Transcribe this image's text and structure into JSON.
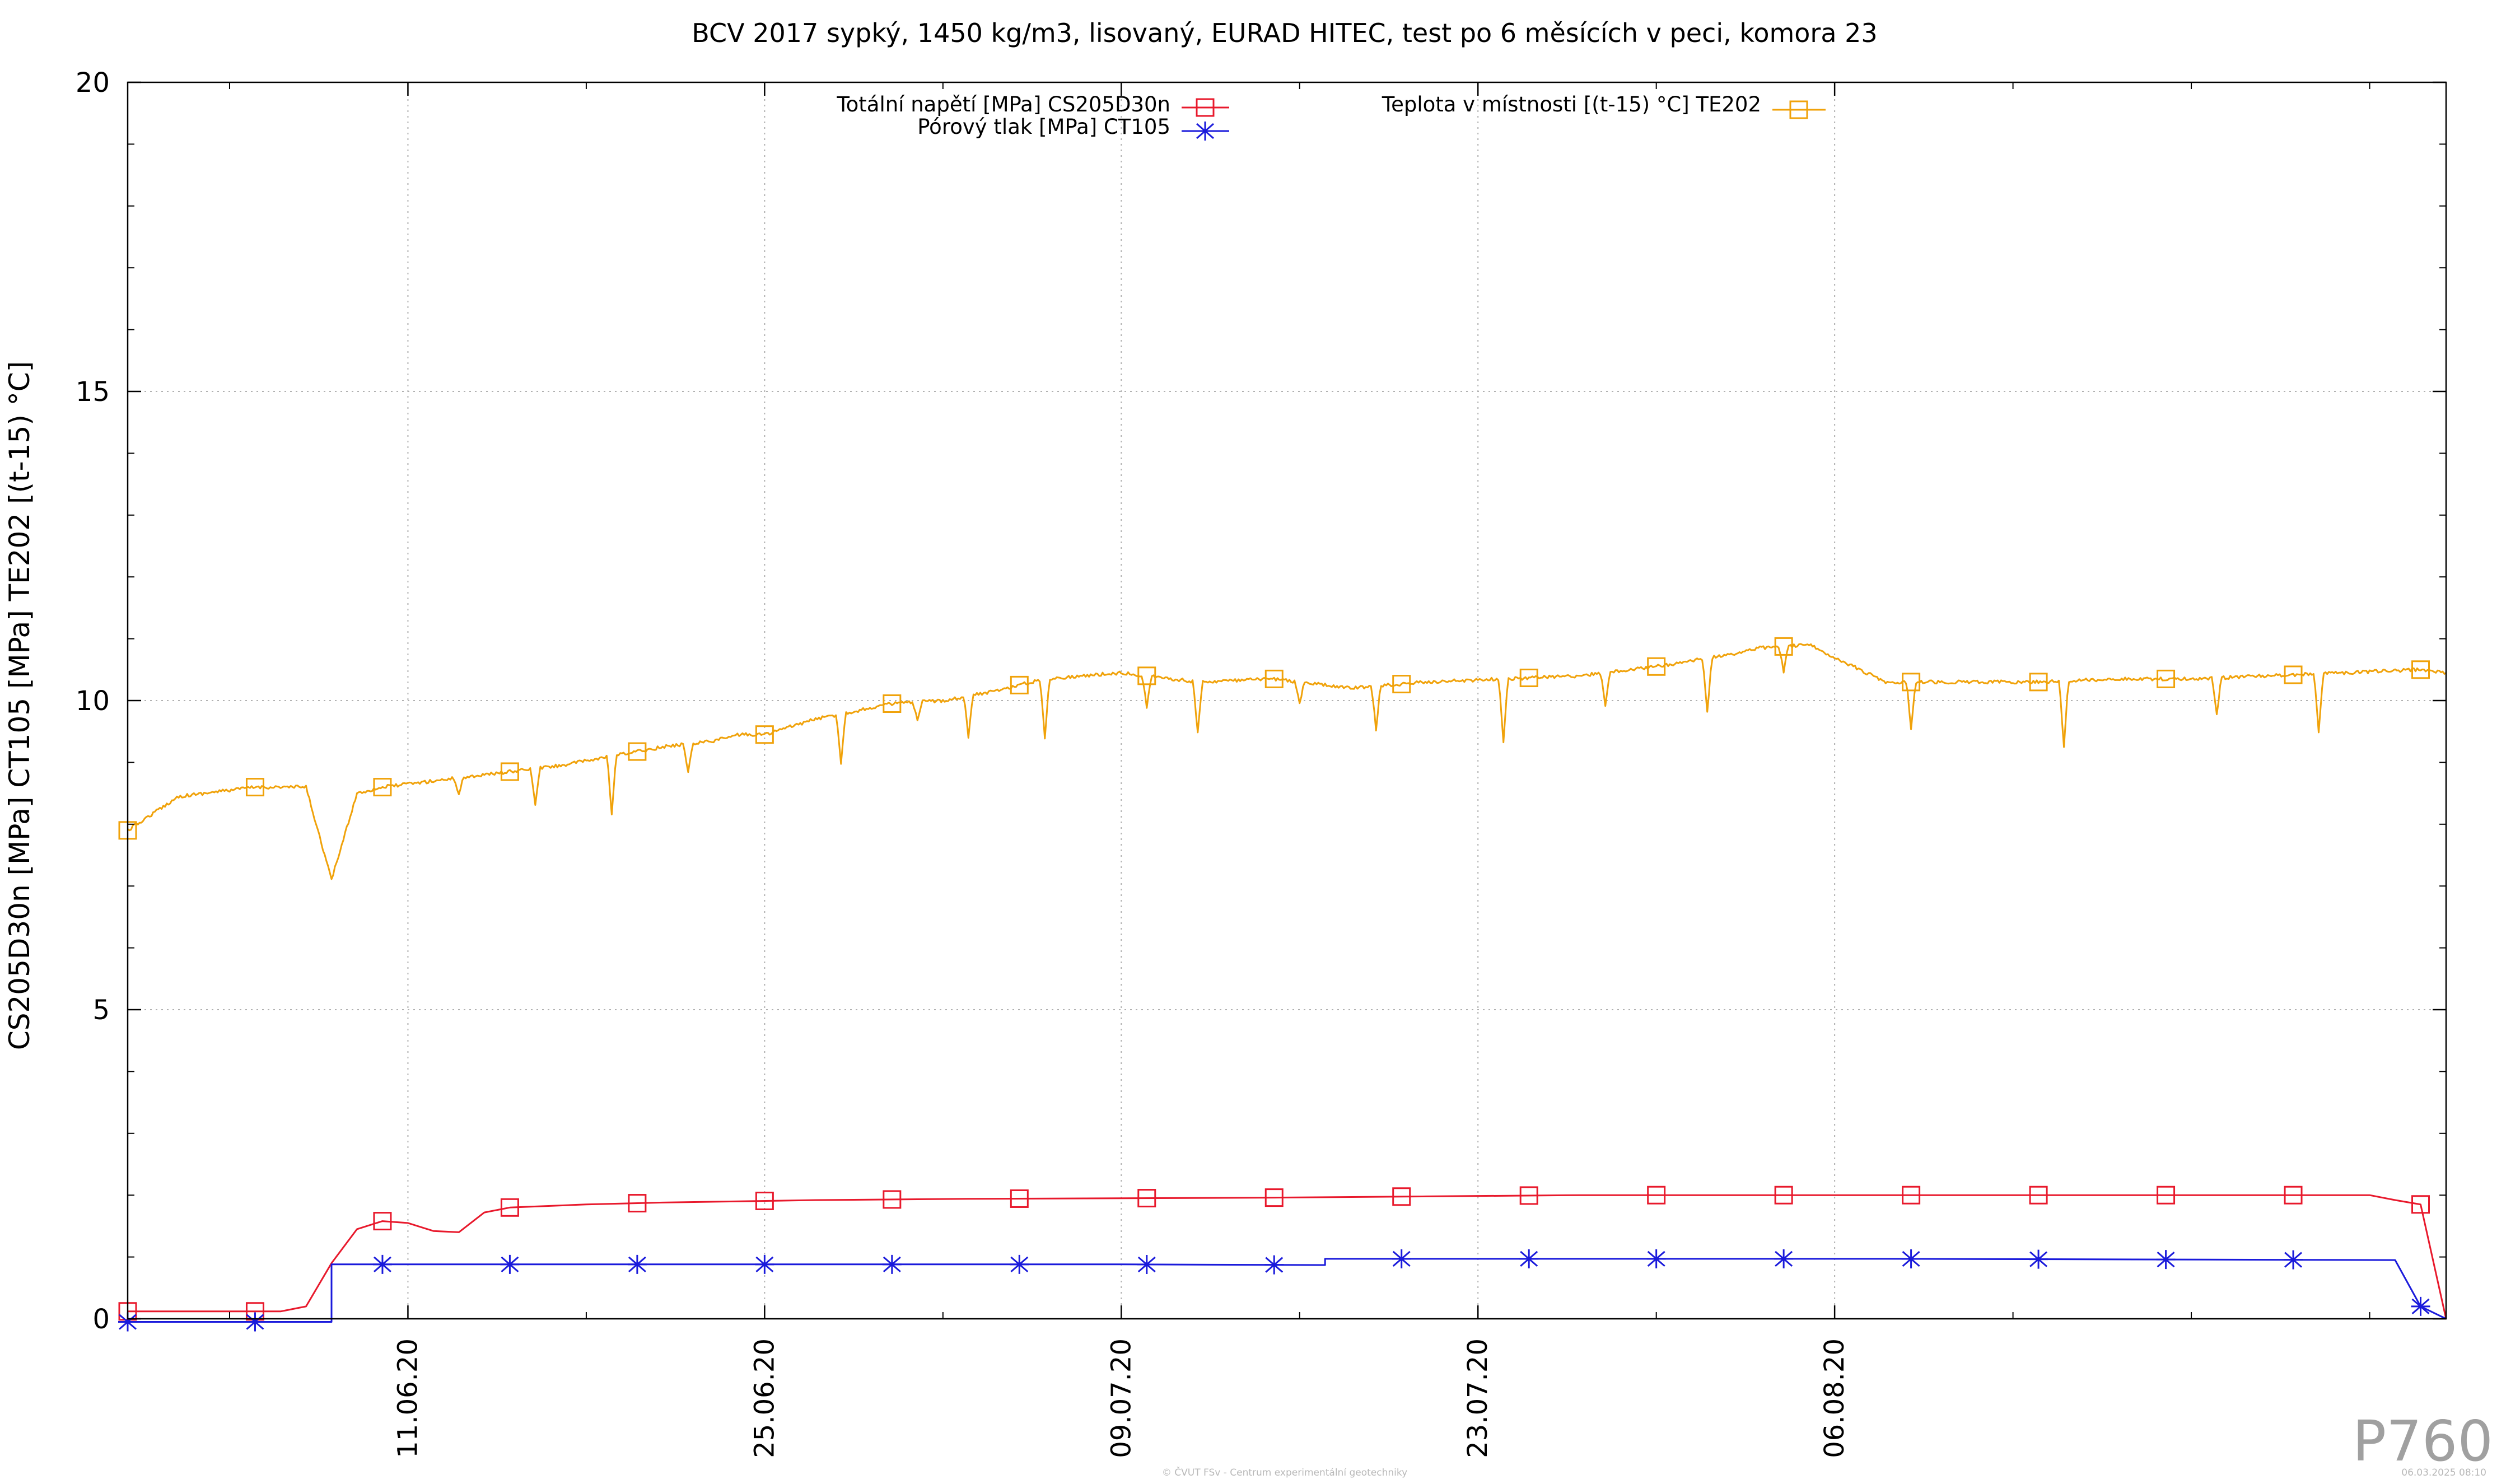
{
  "chart_data": {
    "type": "line",
    "title": "BCV 2017 sypký, 1450 kg/m3, lisovaný, EURAD HITEC, test po 6 měsících v peci, komora 23",
    "ylabel": "CS205D30n [MPa] CT105 [MPa] TE202 [(t-15) °C]",
    "xlabel": "",
    "xlim": [
      "2020-05-31",
      "2020-08-30"
    ],
    "ylim": [
      0,
      20
    ],
    "yticks": [
      0,
      5,
      10,
      15,
      20
    ],
    "xticks": [
      "2020-06-11",
      "2020-06-25",
      "2020-07-09",
      "2020-07-23",
      "2020-08-06"
    ],
    "xtick_labels": [
      "11.06.20",
      "25.06.20",
      "09.07.20",
      "23.07.20",
      "06.08.20"
    ],
    "grid": true,
    "legend_position": "top",
    "series": [
      {
        "name": "Totální napětí [MPa] CS205D30n",
        "color": "#e8192c",
        "marker": "square",
        "x": [
          "2020-05-31",
          "2020-06-06",
          "2020-06-07",
          "2020-06-08",
          "2020-06-09",
          "2020-06-10",
          "2020-06-11",
          "2020-06-12",
          "2020-06-13",
          "2020-06-14",
          "2020-06-15",
          "2020-06-18",
          "2020-06-21",
          "2020-06-24",
          "2020-06-27",
          "2020-07-03",
          "2020-07-09",
          "2020-07-15",
          "2020-07-21",
          "2020-07-27",
          "2020-08-02",
          "2020-08-08",
          "2020-08-14",
          "2020-08-20",
          "2020-08-27",
          "2020-08-28",
          "2020-08-29",
          "2020-08-30"
        ],
        "y": [
          0.12,
          0.12,
          0.2,
          0.9,
          1.45,
          1.58,
          1.55,
          1.42,
          1.4,
          1.72,
          1.8,
          1.85,
          1.88,
          1.9,
          1.92,
          1.94,
          1.95,
          1.96,
          1.98,
          2.0,
          2.0,
          2.0,
          2.0,
          2.0,
          2.0,
          1.92,
          1.85,
          0.0
        ]
      },
      {
        "name": "Pórový tlak [MPa] CT105",
        "color": "#1a1adb",
        "marker": "star",
        "x": [
          "2020-05-31",
          "2020-06-06",
          "2020-06-08",
          "2020-06-08",
          "2020-07-09",
          "2020-07-17",
          "2020-07-17",
          "2020-08-08",
          "2020-08-28",
          "2020-08-29",
          "2020-08-30"
        ],
        "y": [
          -0.05,
          -0.05,
          -0.05,
          0.88,
          0.88,
          0.87,
          0.97,
          0.97,
          0.95,
          0.2,
          0.0
        ]
      },
      {
        "name": "Teplota v místnosti [(t-15) °C] TE202",
        "color": "#f0a20a",
        "marker": "square",
        "x": [
          "2020-05-31",
          "2020-06-02",
          "2020-06-05",
          "2020-06-07",
          "2020-06-08",
          "2020-06-09",
          "2020-06-10",
          "2020-06-11",
          "2020-06-13",
          "2020-06-15",
          "2020-06-17",
          "2020-06-19",
          "2020-06-21",
          "2020-06-23",
          "2020-06-24",
          "2020-06-25",
          "2020-06-27",
          "2020-06-30",
          "2020-07-02",
          "2020-07-04",
          "2020-07-06",
          "2020-07-09",
          "2020-07-12",
          "2020-07-15",
          "2020-07-18",
          "2020-07-21",
          "2020-07-24",
          "2020-07-27",
          "2020-07-30",
          "2020-08-02",
          "2020-08-03",
          "2020-08-05",
          "2020-08-08",
          "2020-08-11",
          "2020-08-14",
          "2020-08-17",
          "2020-08-20",
          "2020-08-23",
          "2020-08-26",
          "2020-08-29",
          "2020-08-30"
        ],
        "y": [
          7.9,
          8.45,
          8.6,
          8.6,
          7.1,
          8.5,
          8.6,
          8.65,
          8.75,
          8.85,
          8.95,
          9.1,
          9.25,
          9.35,
          9.45,
          9.45,
          9.7,
          9.95,
          10.0,
          10.15,
          10.35,
          10.45,
          10.3,
          10.35,
          10.2,
          10.3,
          10.35,
          10.4,
          10.55,
          10.75,
          10.85,
          10.9,
          10.3,
          10.3,
          10.3,
          10.35,
          10.35,
          10.4,
          10.45,
          10.5,
          10.45
        ]
      }
    ]
  },
  "watermark": "P760",
  "footer_left": "© ČVUT FSv - Centrum experimentální geotechniky",
  "footer_right": "06.03.2025 08:10"
}
